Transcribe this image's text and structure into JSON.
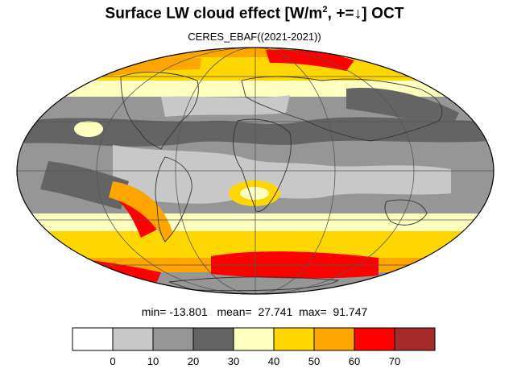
{
  "title": {
    "main": "Surface LW cloud effect [W/m",
    "sup": "2",
    "rest": ", +=↓]  OCT"
  },
  "subtitle": "CERES_EBAF((2021-2021))",
  "stats": {
    "min_label": "min=",
    "min": "-13.801",
    "mean_label": "mean=",
    "mean": "27.741",
    "max_label": "max=",
    "max": "91.747"
  },
  "colorbar": {
    "ticks": [
      "0",
      "10",
      "20",
      "30",
      "40",
      "50",
      "60",
      "70"
    ],
    "colors": [
      "#ffffff",
      "#c8c8c8",
      "#969696",
      "#646464",
      "#ffffc0",
      "#ffd700",
      "#ffa500",
      "#ff0000",
      "#a52a2a"
    ]
  },
  "map": {
    "projection": "Mollweide",
    "land_outline_color": "#333333",
    "graticule_color": "#555555"
  }
}
